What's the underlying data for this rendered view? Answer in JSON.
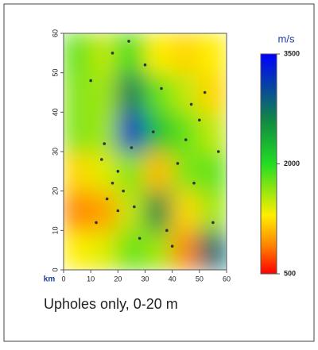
{
  "chart_data": {
    "type": "heatmap",
    "x": [
      5,
      15,
      25,
      35,
      45,
      55
    ],
    "y": [
      5,
      15,
      25,
      35,
      45,
      55
    ],
    "z": [
      [
        1300,
        1400,
        1800,
        1600,
        900,
        2800
      ],
      [
        900,
        1000,
        1500,
        2600,
        1200,
        1600
      ],
      [
        1200,
        1400,
        1700,
        1100,
        1700,
        1800
      ],
      [
        1700,
        1600,
        3200,
        2200,
        1800,
        1500
      ],
      [
        1700,
        1600,
        2700,
        1800,
        1500,
        1200
      ],
      [
        1800,
        1500,
        2000,
        1300,
        1200,
        1300
      ]
    ],
    "xlim": [
      0,
      60
    ],
    "ylim": [
      0,
      60
    ],
    "xticks": [
      0,
      10,
      20,
      30,
      40,
      50,
      60
    ],
    "yticks": [
      0,
      10,
      20,
      30,
      40,
      50,
      60
    ],
    "axis_unit": "km",
    "colorbar_title": "m/s",
    "clim": [
      500,
      3500
    ],
    "cticks": [
      500,
      2000,
      3500
    ],
    "colorscale": [
      [
        500,
        "#ff0000"
      ],
      [
        900,
        "#ff8800"
      ],
      [
        1300,
        "#ffee00"
      ],
      [
        2000,
        "#22dd22"
      ],
      [
        2600,
        "#118844"
      ],
      [
        3500,
        "#0000ff"
      ]
    ],
    "points": {
      "name": "upholes",
      "color": "#333333",
      "x": [
        12,
        16,
        18,
        20,
        22,
        14,
        25,
        28,
        33,
        38,
        42,
        47,
        52,
        55,
        10,
        18,
        24,
        30,
        36,
        45,
        50,
        15,
        20,
        26,
        40,
        48,
        57
      ],
      "y": [
        12,
        18,
        22,
        15,
        20,
        28,
        31,
        8,
        35,
        10,
        27,
        42,
        45,
        12,
        48,
        55,
        58,
        52,
        46,
        33,
        38,
        32,
        25,
        16,
        6,
        22,
        30
      ]
    },
    "caption": "Upholes only, 0-20 m"
  }
}
